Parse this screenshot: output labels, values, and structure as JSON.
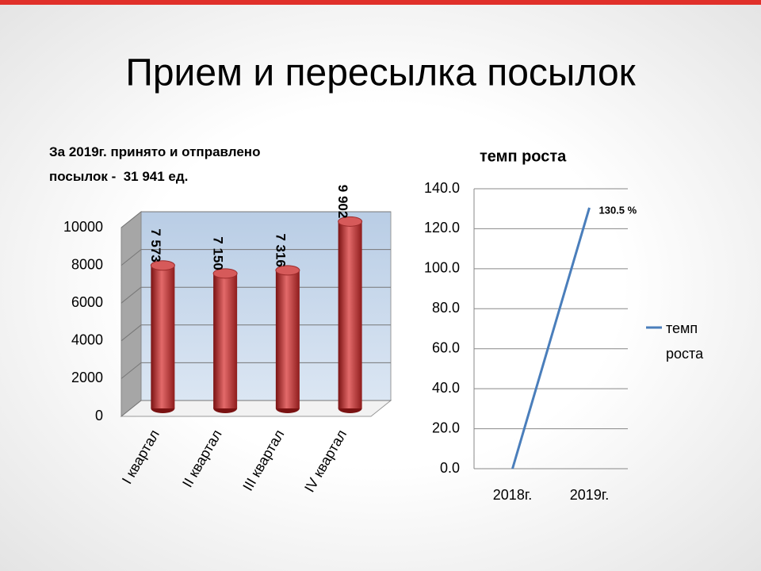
{
  "title": "Прием и пересылка посылок",
  "note": "За 2019г. принято и отправлено посылок -  31 941 ед.",
  "chart_data": [
    {
      "type": "bar3d",
      "categories": [
        "I квартал",
        "II квартал",
        "III квартал",
        "IV квартал"
      ],
      "values": [
        7573,
        7150,
        7316,
        9902
      ],
      "value_labels": [
        "7 573",
        "7 150",
        "7 316",
        "9 902"
      ],
      "color": "#c0392b",
      "ylim": [
        0,
        10000
      ],
      "yticks": [
        0,
        2000,
        4000,
        6000,
        8000,
        10000
      ],
      "grid": true
    },
    {
      "type": "line",
      "title": "темп роста",
      "categories": [
        "2018г.",
        "2019г."
      ],
      "series": [
        {
          "name": "темп роста",
          "color": "#4a7ebb",
          "values": [
            0,
            130.5
          ],
          "value_labels": [
            null,
            "130.5 %"
          ]
        }
      ],
      "ylim": [
        0,
        140
      ],
      "yticks": [
        {
          "value": 0,
          "label": "0.0"
        },
        {
          "value": 20,
          "label": "20.0"
        },
        {
          "value": 40,
          "label": "40.0"
        },
        {
          "value": 60,
          "label": "60.0"
        },
        {
          "value": 80,
          "label": "80.0"
        },
        {
          "value": 100,
          "label": "100.0"
        },
        {
          "value": 120,
          "label": "120.0"
        },
        {
          "value": 140,
          "label": "140.0"
        }
      ],
      "grid": true,
      "legend": "right"
    }
  ]
}
